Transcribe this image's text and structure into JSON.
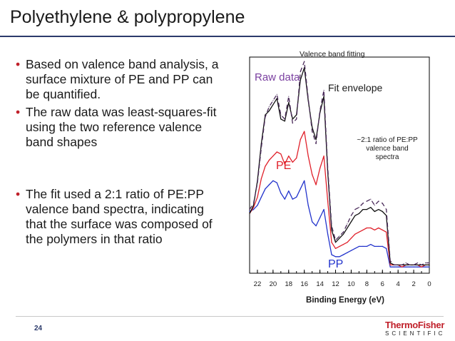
{
  "slide": {
    "title": "Polyethylene & polypropylene",
    "page_number": "24",
    "bullets": [
      "Based on valence band analysis, a surface mixture of PE and PP can be quantified.",
      "The raw data was least-squares-fit using the two reference valence band shapes",
      "The fit used a 2:1 ratio of PE:PP valence band spectra, indicating that the surface was composed of the polymers in that ratio"
    ],
    "logo": {
      "top": "ThermoFisher",
      "bottom": "SCIENTIFIC"
    },
    "colors": {
      "accent_red": "#c0202a",
      "navy": "#2b3a6b"
    }
  },
  "chart_data": {
    "type": "line",
    "title": "Valence band fitting",
    "xlabel": "Binding Energy (eV)",
    "ylabel": "",
    "xlim": [
      23,
      0
    ],
    "x_reversed": true,
    "xticks": [
      22,
      20,
      18,
      16,
      14,
      12,
      10,
      8,
      6,
      4,
      2,
      0
    ],
    "ylim": [
      0,
      100
    ],
    "grid": false,
    "annotations": [
      {
        "text": "Raw data",
        "color": "#7a3fa0"
      },
      {
        "text": "Fit envelope",
        "color": "#1a1a1a"
      },
      {
        "text": "~2:1 ratio of PE:PP valence band spectra",
        "color": "#1a1a1a"
      },
      {
        "text": "PE",
        "color": "#e0202a"
      },
      {
        "text": "PP",
        "color": "#2233cc"
      }
    ],
    "x": [
      23,
      22.5,
      22,
      21.5,
      21,
      20.5,
      20,
      19.5,
      19,
      18.5,
      18,
      17.5,
      17,
      16.5,
      16,
      15.5,
      15,
      14.5,
      14,
      13.5,
      13,
      12.5,
      12,
      11.5,
      11,
      10.5,
      10,
      9.5,
      9,
      8.5,
      8,
      7.5,
      7,
      6.5,
      6,
      5.5,
      5,
      4.5,
      4,
      3.5,
      3,
      2.5,
      2,
      1.5,
      1,
      0.5,
      0
    ],
    "series": [
      {
        "name": "Raw data",
        "color": "#4a2a5a",
        "dash": "6,4",
        "values": [
          30,
          33,
          43,
          60,
          75,
          80,
          83,
          86,
          76,
          74,
          85,
          72,
          74,
          97,
          102,
          84,
          68,
          62,
          78,
          88,
          50,
          22,
          15,
          17,
          19,
          23,
          27,
          30,
          31,
          33,
          34,
          35,
          32,
          34,
          33,
          30,
          5,
          3,
          3,
          3,
          4,
          3,
          3,
          4,
          3,
          4,
          4
        ]
      },
      {
        "name": "Fit envelope",
        "color": "#111111",
        "dash": "",
        "values": [
          28,
          32,
          44,
          62,
          76,
          78,
          81,
          84,
          74,
          73,
          82,
          74,
          76,
          93,
          99,
          83,
          70,
          64,
          77,
          85,
          48,
          20,
          14,
          16,
          18,
          21,
          24,
          27,
          28,
          30,
          30,
          31,
          29,
          30,
          29,
          27,
          4,
          3,
          3,
          3,
          3,
          3,
          3,
          3,
          3,
          3,
          3
        ]
      },
      {
        "name": "PE",
        "color": "#e0202a",
        "dash": "",
        "values": [
          28,
          31,
          36,
          45,
          51,
          54,
          56,
          58,
          57,
          52,
          56,
          53,
          55,
          64,
          68,
          56,
          47,
          42,
          50,
          56,
          34,
          14,
          11,
          12,
          13,
          14,
          16,
          18,
          19,
          20,
          21,
          21,
          20,
          21,
          20,
          19,
          3,
          3,
          3,
          2,
          3,
          3,
          3,
          3,
          2,
          3,
          3
        ]
      },
      {
        "name": "PP",
        "color": "#2233cc",
        "dash": "",
        "values": [
          29,
          30,
          32,
          36,
          40,
          42,
          44,
          43,
          38,
          35,
          39,
          35,
          36,
          40,
          44,
          32,
          24,
          22,
          26,
          30,
          18,
          8,
          7,
          7,
          8,
          9,
          10,
          11,
          12,
          12,
          12,
          13,
          12,
          12,
          12,
          11,
          2,
          2,
          2,
          2,
          2,
          2,
          2,
          2,
          2,
          2,
          2
        ]
      }
    ]
  }
}
